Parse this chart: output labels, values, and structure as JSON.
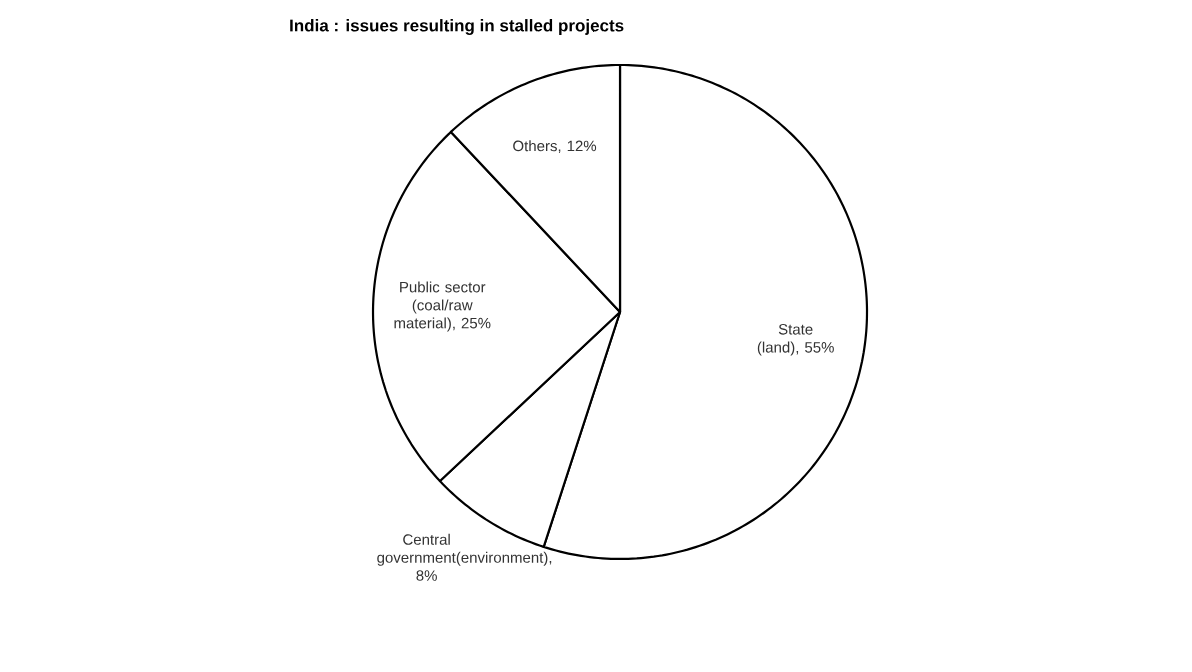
{
  "chart_data": {
    "type": "pie",
    "title": "India : issues resulting in stalled projects",
    "categories": [
      "State (land)",
      "Central government(environment)",
      "Public sector (coal/raw material)",
      "Others"
    ],
    "values": [
      55,
      8,
      25,
      12
    ],
    "value_labels": [
      ", 55%",
      ", 8%",
      ", 25%",
      ", 12%"
    ],
    "colors": [
      "#ffffff",
      "#ffffff",
      "#ffffff",
      "#ffffff"
    ]
  }
}
